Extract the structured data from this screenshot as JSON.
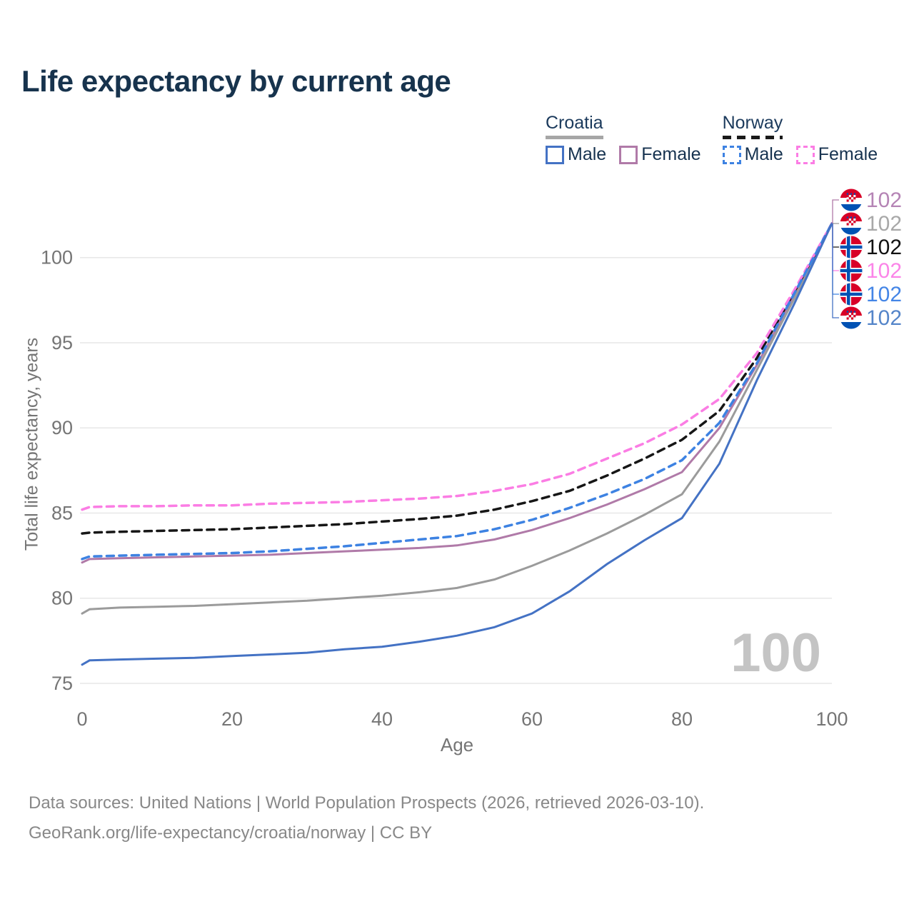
{
  "title": "Life expectancy by current age",
  "watermark": "100",
  "footer": {
    "line1": "Data sources: United Nations | World Population Prospects (2026, retrieved 2026-03-10).",
    "line2": "GeoRank.org/life-expectancy/croatia/norway | CC BY"
  },
  "legend": {
    "groups": [
      {
        "country": "Croatia",
        "line_style": "solid",
        "underline_color": "#a6a6a6",
        "items": [
          {
            "label": "Male",
            "color": "#4472c4",
            "dashed": false
          },
          {
            "label": "Female",
            "color": "#b07aa8",
            "dashed": false
          }
        ]
      },
      {
        "country": "Norway",
        "line_style": "dashed",
        "underline_color": "#1a1a1a",
        "items": [
          {
            "label": "Male",
            "color": "#3d82e2",
            "dashed": true
          },
          {
            "label": "Female",
            "color": "#fb7de4",
            "dashed": true
          }
        ]
      }
    ]
  },
  "chart_data": {
    "type": "line",
    "title": "Life expectancy by current age",
    "xlabel": "Age",
    "ylabel": "Total life expectancy, years",
    "xlim": [
      0,
      100
    ],
    "ylim": [
      75,
      102
    ],
    "xticks": [
      0,
      20,
      40,
      60,
      80,
      100
    ],
    "yticks": [
      75,
      80,
      85,
      90,
      95,
      100
    ],
    "grid": "horizontal",
    "legend_position": "top-right",
    "x": [
      0,
      1,
      5,
      10,
      15,
      20,
      25,
      30,
      35,
      40,
      45,
      50,
      55,
      60,
      65,
      70,
      75,
      80,
      85,
      90,
      95,
      100
    ],
    "series": [
      {
        "name": "Croatia Female",
        "country": "croatia",
        "color": "#b07aa8",
        "label_color": "#b584b5",
        "dash": false,
        "end_label": "102",
        "values": [
          82.1,
          82.3,
          82.35,
          82.4,
          82.45,
          82.5,
          82.55,
          82.65,
          82.75,
          82.85,
          82.95,
          83.1,
          83.45,
          84.0,
          84.7,
          85.5,
          86.4,
          87.4,
          90.0,
          93.7,
          97.8,
          102
        ]
      },
      {
        "name": "Croatia",
        "country": "croatia",
        "color": "#9b9b9b",
        "label_color": "#a8a8a8",
        "dash": false,
        "end_label": "102",
        "values": [
          79.1,
          79.35,
          79.45,
          79.5,
          79.55,
          79.65,
          79.75,
          79.85,
          80.0,
          80.15,
          80.35,
          80.6,
          81.1,
          81.9,
          82.8,
          83.8,
          84.9,
          86.1,
          89.2,
          93.4,
          97.6,
          102
        ]
      },
      {
        "name": "Norway",
        "country": "norway",
        "color": "#161616",
        "label_color": "#111111",
        "dash": true,
        "end_label": "102",
        "values": [
          83.8,
          83.85,
          83.9,
          83.95,
          84.0,
          84.05,
          84.15,
          84.25,
          84.35,
          84.5,
          84.65,
          84.85,
          85.2,
          85.7,
          86.3,
          87.2,
          88.2,
          89.3,
          91.0,
          94.1,
          98.0,
          102
        ]
      },
      {
        "name": "Norway Female",
        "country": "norway",
        "color": "#fb7de4",
        "label_color": "#fb85e8",
        "dash": true,
        "end_label": "102",
        "values": [
          85.2,
          85.35,
          85.4,
          85.4,
          85.45,
          85.45,
          85.55,
          85.6,
          85.65,
          85.75,
          85.85,
          86.0,
          86.3,
          86.7,
          87.3,
          88.2,
          89.1,
          90.2,
          91.7,
          94.4,
          98.1,
          102
        ]
      },
      {
        "name": "Norway Male",
        "country": "norway",
        "color": "#3d82e2",
        "label_color": "#4485e6",
        "dash": true,
        "end_label": "102",
        "values": [
          82.3,
          82.45,
          82.5,
          82.55,
          82.6,
          82.65,
          82.75,
          82.9,
          83.05,
          83.25,
          83.45,
          83.65,
          84.05,
          84.6,
          85.3,
          86.1,
          87.0,
          88.1,
          90.3,
          93.8,
          97.9,
          102
        ]
      },
      {
        "name": "Croatia Male",
        "country": "croatia",
        "color": "#4472c4",
        "label_color": "#5585c9",
        "dash": false,
        "end_label": "102",
        "values": [
          76.1,
          76.35,
          76.4,
          76.45,
          76.5,
          76.6,
          76.7,
          76.8,
          77.0,
          77.15,
          77.45,
          77.8,
          78.3,
          79.1,
          80.4,
          82.0,
          83.4,
          84.7,
          87.9,
          92.8,
          97.3,
          102
        ]
      }
    ]
  }
}
